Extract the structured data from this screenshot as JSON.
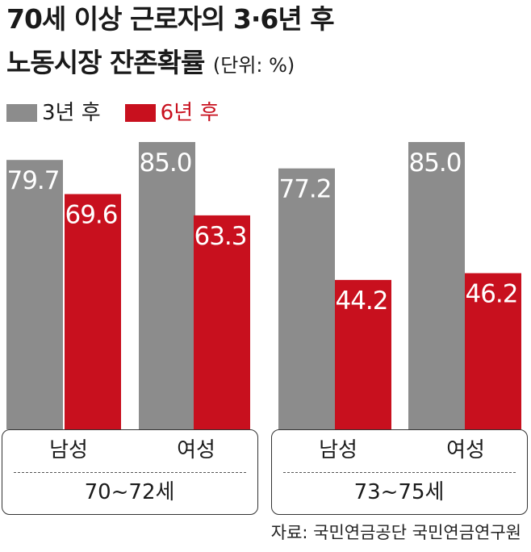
{
  "title": {
    "line1": "70세 이상 근로자의 3·6년 후",
    "line2": "노동시장 잔존확률",
    "unit": "(단위: %)"
  },
  "colors": {
    "series_3yr": "#8c8c8c",
    "series_6yr": "#c8101e"
  },
  "chart_data": {
    "type": "bar",
    "title": "70세 이상 근로자의 3·6년 후 노동시장 잔존확률",
    "unit": "(단위: %)",
    "groups": [
      {
        "label": "70~72세",
        "categories": [
          "남성",
          "여성"
        ]
      },
      {
        "label": "73~75세",
        "categories": [
          "남성",
          "여성"
        ]
      }
    ],
    "categories": [
      "남성",
      "여성",
      "남성",
      "여성"
    ],
    "series": [
      {
        "name": "3년 후",
        "values": [
          79.7,
          85.0,
          77.2,
          85.0
        ]
      },
      {
        "name": "6년 후",
        "values": [
          69.6,
          63.3,
          44.2,
          46.2
        ]
      }
    ],
    "value_labels": {
      "3년 후": [
        "79.7",
        "85.0",
        "77.2",
        "85.0"
      ],
      "6년 후": [
        "69.6",
        "63.3",
        "44.2",
        "46.2"
      ]
    },
    "legend": "top-left",
    "grid": false
  },
  "source": "자료: 국민연금공단 국민연금연구원"
}
